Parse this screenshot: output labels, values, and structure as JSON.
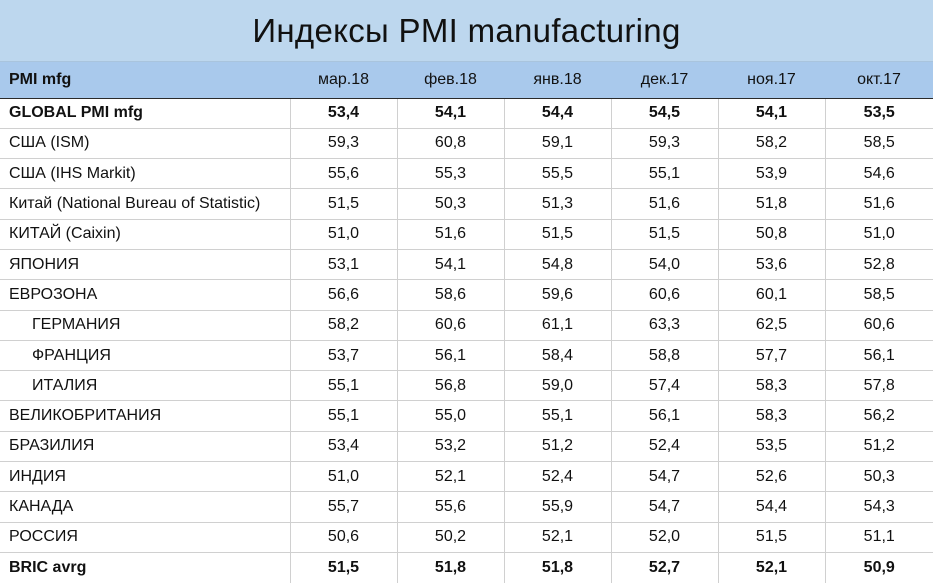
{
  "title": "Индексы PMI manufacturing",
  "header": {
    "label": "PMI mfg",
    "months": [
      "мар.18",
      "фев.18",
      "янв.18",
      "дек.17",
      "ноя.17",
      "окт.17"
    ]
  },
  "rows": [
    {
      "label": "GLOBAL PMI mfg",
      "bold": true,
      "indent": false,
      "values": [
        "53,4",
        "54,1",
        "54,4",
        "54,5",
        "54,1",
        "53,5"
      ]
    },
    {
      "label": "США (ISM)",
      "bold": false,
      "indent": false,
      "values": [
        "59,3",
        "60,8",
        "59,1",
        "59,3",
        "58,2",
        "58,5"
      ]
    },
    {
      "label": "США (IHS Markit)",
      "bold": false,
      "indent": false,
      "values": [
        "55,6",
        "55,3",
        "55,5",
        "55,1",
        "53,9",
        "54,6"
      ]
    },
    {
      "label": "Китай (National Bureau of Statistic)",
      "bold": false,
      "indent": false,
      "values": [
        "51,5",
        "50,3",
        "51,3",
        "51,6",
        "51,8",
        "51,6"
      ]
    },
    {
      "label": "КИТАЙ (Caixin)",
      "bold": false,
      "indent": false,
      "values": [
        "51,0",
        "51,6",
        "51,5",
        "51,5",
        "50,8",
        "51,0"
      ]
    },
    {
      "label": "ЯПОНИЯ",
      "bold": false,
      "indent": false,
      "values": [
        "53,1",
        "54,1",
        "54,8",
        "54,0",
        "53,6",
        "52,8"
      ]
    },
    {
      "label": "ЕВРОЗОНА",
      "bold": false,
      "indent": false,
      "values": [
        "56,6",
        "58,6",
        "59,6",
        "60,6",
        "60,1",
        "58,5"
      ]
    },
    {
      "label": "ГЕРМАНИЯ",
      "bold": false,
      "indent": true,
      "values": [
        "58,2",
        "60,6",
        "61,1",
        "63,3",
        "62,5",
        "60,6"
      ]
    },
    {
      "label": "ФРАНЦИЯ",
      "bold": false,
      "indent": true,
      "values": [
        "53,7",
        "56,1",
        "58,4",
        "58,8",
        "57,7",
        "56,1"
      ]
    },
    {
      "label": "ИТАЛИЯ",
      "bold": false,
      "indent": true,
      "values": [
        "55,1",
        "56,8",
        "59,0",
        "57,4",
        "58,3",
        "57,8"
      ]
    },
    {
      "label": "ВЕЛИКОБРИТАНИЯ",
      "bold": false,
      "indent": false,
      "values": [
        "55,1",
        "55,0",
        "55,1",
        "56,1",
        "58,3",
        "56,2"
      ]
    },
    {
      "label": "БРАЗИЛИЯ",
      "bold": false,
      "indent": false,
      "values": [
        "53,4",
        "53,2",
        "51,2",
        "52,4",
        "53,5",
        "51,2"
      ]
    },
    {
      "label": "ИНДИЯ",
      "bold": false,
      "indent": false,
      "values": [
        "51,0",
        "52,1",
        "52,4",
        "54,7",
        "52,6",
        "50,3"
      ]
    },
    {
      "label": "КАНАДА",
      "bold": false,
      "indent": false,
      "values": [
        "55,7",
        "55,6",
        "55,9",
        "54,7",
        "54,4",
        "54,3"
      ]
    },
    {
      "label": "РОССИЯ",
      "bold": false,
      "indent": false,
      "values": [
        "50,6",
        "50,2",
        "52,1",
        "52,0",
        "51,5",
        "51,1"
      ]
    },
    {
      "label": "BRIC avrg",
      "bold": true,
      "indent": false,
      "values": [
        "51,5",
        "51,8",
        "51,8",
        "52,7",
        "52,1",
        "50,9"
      ]
    }
  ]
}
